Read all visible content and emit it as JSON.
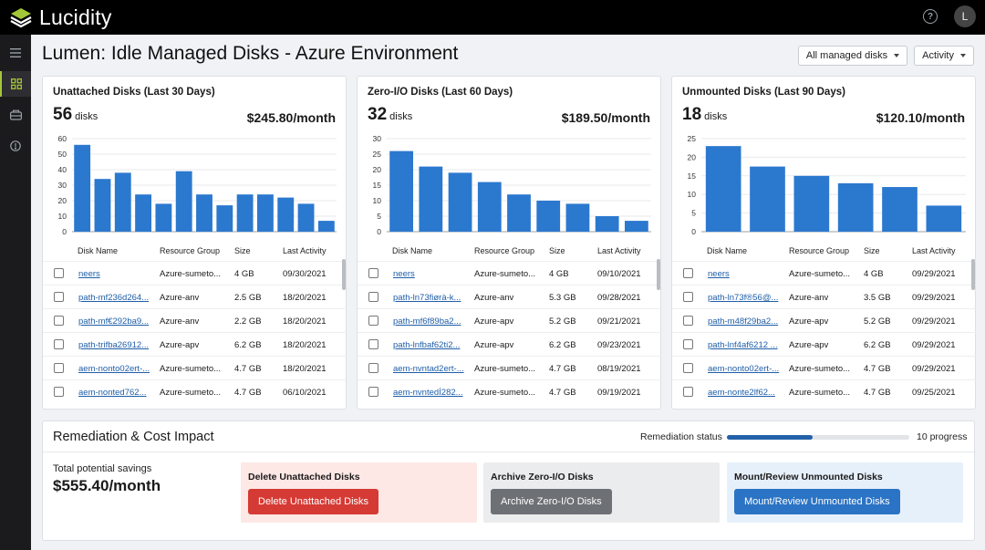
{
  "app": {
    "brand": "Lucidity",
    "user_initial": "L",
    "accent": "#a4c639"
  },
  "header": {
    "title": "Lumen: Idle Managed Disks - Azure Environment",
    "filter_scope": "All managed disks",
    "filter_view": "Activity"
  },
  "columns": {
    "name": "Disk Name",
    "group": "Resource Group",
    "size": "Size",
    "activity": "Last Activity"
  },
  "cards": [
    {
      "title": "Unattached Disks (Last 30 Days)",
      "count": "56",
      "count_unit": "disks",
      "cost": "$245.80/month",
      "chart_data": {
        "type": "bar",
        "ylim": [
          0,
          60
        ],
        "yticks": [
          0,
          10,
          20,
          30,
          40,
          50,
          60
        ],
        "values": [
          56,
          34,
          38,
          24,
          18,
          39,
          24,
          17,
          24,
          24,
          22,
          18,
          7
        ]
      },
      "rows": [
        {
          "name": "neers",
          "group": "Azure-sumeto...",
          "size": "4 GB",
          "activity": "09/30/2021"
        },
        {
          "name": "path-mf236d264...",
          "group": "Azure-anv",
          "size": "2.5 GB",
          "activity": "18/20/2021"
        },
        {
          "name": "path-mf€292ba9...",
          "group": "Azure-anv",
          "size": "2.2 GB",
          "activity": "18/20/2021"
        },
        {
          "name": "path-trifba26912...",
          "group": "Azure-apv",
          "size": "6.2 GB",
          "activity": "18/20/2021"
        },
        {
          "name": "aem-nonto02ert-...",
          "group": "Azure-sumeto...",
          "size": "4.7 GB",
          "activity": "18/20/2021"
        },
        {
          "name": "aem-nonted762...",
          "group": "Azure-sumeto...",
          "size": "4.7 GB",
          "activity": "06/10/2021"
        }
      ]
    },
    {
      "title": "Zero-I/O Disks (Last 60 Days)",
      "count": "32",
      "count_unit": "disks",
      "cost": "$189.50/month",
      "chart_data": {
        "type": "bar",
        "ylim": [
          0,
          30
        ],
        "yticks": [
          0,
          5,
          10,
          15,
          20,
          25,
          30
        ],
        "values": [
          26,
          21,
          19,
          16,
          12,
          10,
          9,
          5,
          3.5
        ]
      },
      "rows": [
        {
          "name": "neers",
          "group": "Azure-sumeto...",
          "size": "4 GB",
          "activity": "09/10/2021"
        },
        {
          "name": "path-ln73fiørà-k...",
          "group": "Azure-anv",
          "size": "5.3 GB",
          "activity": "09/28/2021"
        },
        {
          "name": "path-mf6f89ba2...",
          "group": "Azure-apv",
          "size": "5.2 GB",
          "activity": "09/21/2021"
        },
        {
          "name": "path-lnfbaf62ti2...",
          "group": "Azure-apv",
          "size": "6.2 GB",
          "activity": "09/23/2021"
        },
        {
          "name": "aem-nvntad2ert-...",
          "group": "Azure-sumeto...",
          "size": "4.7 GB",
          "activity": "08/19/2021"
        },
        {
          "name": "aem-nvntedİ282...",
          "group": "Azure-sumeto...",
          "size": "4.7 GB",
          "activity": "09/19/2021"
        }
      ]
    },
    {
      "title": "Unmounted Disks (Last 90 Days)",
      "count": "18",
      "count_unit": "disks",
      "cost": "$120.10/month",
      "chart_data": {
        "type": "bar",
        "ylim": [
          0,
          25
        ],
        "yticks": [
          0,
          5,
          10,
          15,
          20,
          25
        ],
        "values": [
          23,
          17.5,
          15,
          13,
          12,
          7
        ]
      },
      "rows": [
        {
          "name": "neers",
          "group": "Azure-sumeto...",
          "size": "4 GB",
          "activity": "09/29/2021"
        },
        {
          "name": "path-ln73f®56@...",
          "group": "Azure-anv",
          "size": "3.5 GB",
          "activity": "09/29/2021"
        },
        {
          "name": "path-m48f29ba2...",
          "group": "Azure-apv",
          "size": "5.2 GB",
          "activity": "09/29/2021"
        },
        {
          "name": "path-lnf4af6212 ...",
          "group": "Azure-apv",
          "size": "6.2 GB",
          "activity": "09/29/2021"
        },
        {
          "name": "aem-nonto02ert-...",
          "group": "Azure-sumeto...",
          "size": "4.7 GB",
          "activity": "09/29/2021"
        },
        {
          "name": "aem-nonte2lf62...",
          "group": "Azure-sumeto...",
          "size": "4.7 GB",
          "activity": "09/25/2021"
        }
      ]
    }
  ],
  "remediation": {
    "title": "Remediation & Cost Impact",
    "status_label": "Remediation status",
    "progress_fraction": 0.47,
    "progress_text": "10 progress",
    "savings_label": "Total potential savings",
    "savings_value": "$555.40/month",
    "actions": [
      {
        "title": "Delete Unattached Disks",
        "button": "Delete Unattached Disks",
        "bg": "#fde8e6",
        "btn": "#d63a34"
      },
      {
        "title": "Archive Zero-I/O Disks",
        "button": "Archive Zero-I/O Disks",
        "bg": "#ebeced",
        "btn": "#6d7175"
      },
      {
        "title": "Mount/Review Unmounted Disks",
        "button": "Mount/Review Unmounted Disks",
        "bg": "#e6f0fa",
        "btn": "#2b73c4"
      }
    ]
  },
  "bar_color": "#2b78cf"
}
